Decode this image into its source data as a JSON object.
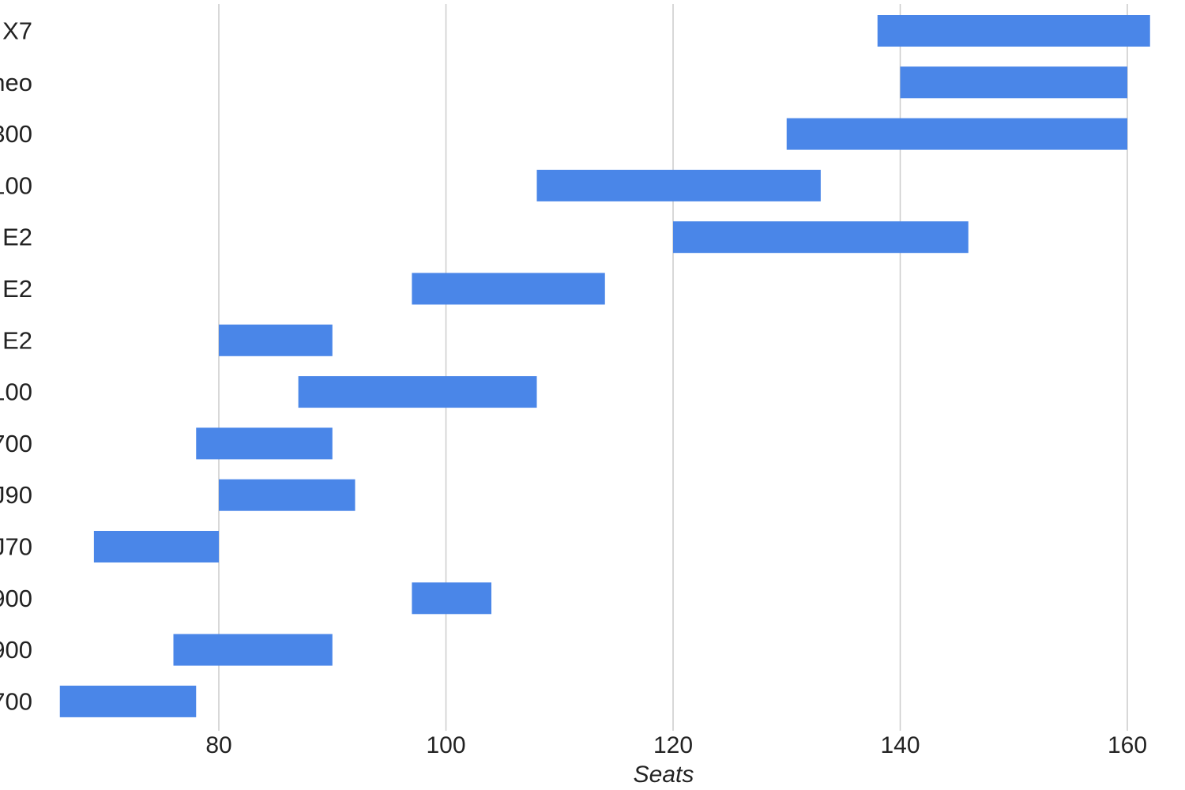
{
  "chart_data": {
    "type": "bar",
    "orientation": "horizontal",
    "subtype": "range",
    "categories": [
      "X7",
      "neo",
      "300",
      "100",
      "E2",
      "E2",
      "E2",
      "100",
      "700",
      "J90",
      "J70",
      "900",
      "900",
      "700"
    ],
    "ranges": [
      [
        138,
        162
      ],
      [
        140,
        160
      ],
      [
        130,
        160
      ],
      [
        108,
        133
      ],
      [
        120,
        146
      ],
      [
        97,
        114
      ],
      [
        80,
        90
      ],
      [
        87,
        108
      ],
      [
        78,
        90
      ],
      [
        80,
        92
      ],
      [
        69,
        80
      ],
      [
        97,
        104
      ],
      [
        76,
        90
      ],
      [
        66,
        78
      ]
    ],
    "xlabel": "Seats",
    "ylabel": "",
    "xlim": [
      80,
      160
    ],
    "xticks": [
      80,
      100,
      120,
      140,
      160
    ],
    "grid": "vertical",
    "legend": "none",
    "bar_color": "#4a86e8",
    "grid_color": "#cccccc"
  }
}
